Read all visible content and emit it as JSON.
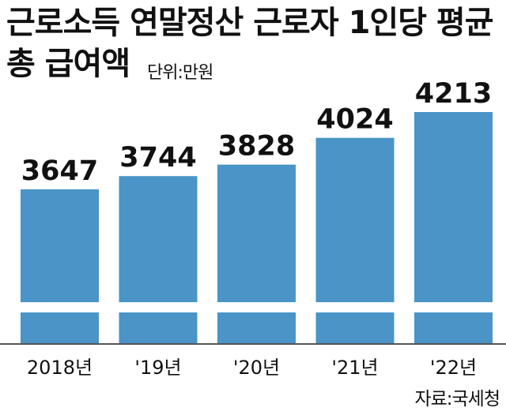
{
  "header": {
    "title_line1": "근로소득 연말정산 근로자 1인당 평균",
    "title_line2": "총 급여액",
    "unit": "단위:만원"
  },
  "source": "자료:국세청",
  "colors": {
    "bar": "#4a94c7",
    "axis": "#555555",
    "text": "#111111"
  },
  "chart_data": {
    "type": "bar",
    "title": "근로소득 연말정산 근로자 1인당 평균 총 급여액",
    "unit": "단위:만원",
    "categories": [
      "2018년",
      "'19년",
      "'20년",
      "'21년",
      "'22년"
    ],
    "values": [
      3647,
      3744,
      3828,
      4024,
      4213
    ],
    "axis_break": true,
    "grid": false,
    "legend": "none"
  }
}
